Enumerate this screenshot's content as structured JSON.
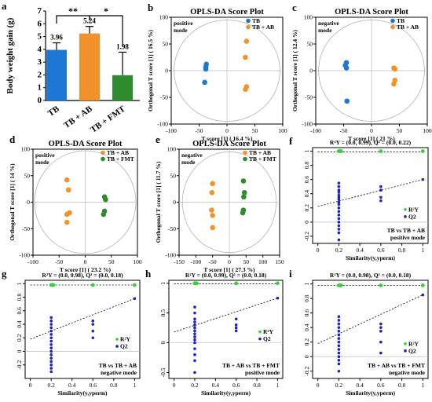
{
  "colors": {
    "blue": "#1f77d4",
    "orange": "#f2922b",
    "green": "#2e8b2e",
    "perm_blue": "#1c22c4",
    "perm_green": "#35d235",
    "ellipse": "#bbbbbb"
  },
  "panels": {
    "a": {
      "letter": "a",
      "ylabel": "Body weight gain (g)",
      "sig1": "**",
      "sig2": "*",
      "value_labels": [
        "3.96",
        "5.24",
        "1.98"
      ]
    },
    "b": {
      "letter": "b",
      "title": "OPLS-DA Score Plot",
      "mode": "positive\nmode",
      "xlabel": "T score [1] ( 16.4 %)",
      "ylabel": "Orthogonal T score [1] ( 16.5 %)",
      "legend": [
        "TB",
        "TB + AB"
      ]
    },
    "c": {
      "letter": "c",
      "title": "OPLS-DA Score Plot",
      "mode": "negative\nmode",
      "xlabel": "T score [1] ( 21 %)",
      "ylabel": "Orthogonal T score [1] ( 12.4 %)",
      "legend": [
        "TB",
        "TB + AB"
      ]
    },
    "d": {
      "letter": "d",
      "title": "OPLS-DA Score Plot",
      "mode": "positive\nmode",
      "xlabel": "T score [1] ( 23.2 %)",
      "ylabel": "Orthogonal T score [1] ( 14 %)",
      "legend": [
        "TB + AB",
        "TB + FMT"
      ]
    },
    "e": {
      "letter": "e",
      "title": "OPLS-DA Score Plot",
      "mode": "negative\nmode",
      "xlabel": "T score [1] ( 27.3 %)",
      "ylabel": "Orthogonal T score [1] ( 11.7 %)",
      "legend": [
        "TB + AB",
        "TB + FMT"
      ]
    },
    "f": {
      "letter": "f",
      "header": "R²Y = (0.0, 0.99), Q² = (0.0, 0.22)",
      "xlabel": "Similarity(y,yperm)",
      "legend": [
        "R²Y",
        "Q2"
      ],
      "note": "TB vs TB + AB\npositive mode"
    },
    "g": {
      "letter": "g",
      "header": "R²Y = (0.0, 0.98), Q² = (0.0, 0.18)",
      "xlabel": "Similarity(y,yperm)",
      "legend": [
        "R²Y",
        "Q2"
      ],
      "note": "TB vs TB + AB\nnegative mode"
    },
    "h": {
      "letter": "h",
      "header": "R²Y = (0.0, 0.99), Q² = (0.0, 0.18)",
      "xlabel": "Similarity(y,yperm)",
      "legend": [
        "R²Y",
        "Q2"
      ],
      "note": "TB + AB vs TB + FMT\npositive mode"
    },
    "i": {
      "letter": "i",
      "header": "R²Y = (0.0, 0.98), Q² = (0.0, 0.18)",
      "xlabel": "Similarity(y,yperm)",
      "legend": [
        "R²Y",
        "Q2"
      ],
      "note": "TB + AB vs TB + FMT\nnegative mode"
    }
  },
  "chart_data": [
    {
      "panel": "a",
      "type": "bar",
      "categories": [
        "TB",
        "TB + AB",
        "TB + FMT"
      ],
      "values": [
        3.96,
        5.24,
        1.98
      ],
      "errors": [
        0.55,
        0.55,
        1.8
      ],
      "colors": [
        "#1f77d4",
        "#f2922b",
        "#2e8b2e"
      ],
      "ylabel": "Body weight gain (g)",
      "ylim": [
        0,
        7
      ],
      "yticks": [
        0,
        1,
        2,
        3,
        4,
        5,
        6,
        7
      ]
    },
    {
      "panel": "b",
      "type": "scatter",
      "title": "OPLS-DA Score Plot",
      "xlabel": "T score [1] ( 16.4 %)",
      "ylabel": "Orthogonal T score [1] ( 16.5 %)",
      "xlim": [
        -100,
        100
      ],
      "ylim": [
        -100,
        100
      ],
      "xticks": [
        -100,
        -50,
        0,
        50,
        100
      ],
      "yticks": [
        -100,
        -50,
        0,
        50,
        100
      ],
      "ellipse": [
        95,
        95
      ],
      "series": [
        {
          "name": "TB",
          "color": "#1f77d4",
          "points": [
            [
              -37,
              12
            ],
            [
              -38,
              7
            ],
            [
              -38,
              3
            ],
            [
              -40,
              -22
            ]
          ]
        },
        {
          "name": "TB + AB",
          "color": "#f2922b",
          "points": [
            [
              35,
              55
            ],
            [
              33,
              25
            ],
            [
              35,
              -30
            ],
            [
              33,
              -35
            ]
          ]
        }
      ]
    },
    {
      "panel": "c",
      "type": "scatter",
      "title": "OPLS-DA Score Plot",
      "xlabel": "T score [1] ( 21 %)",
      "ylabel": "Orthogonal T score [1] ( 12.4 %)",
      "xlim": [
        -100,
        100
      ],
      "ylim": [
        -100,
        100
      ],
      "xticks": [
        -100,
        -50,
        0,
        50,
        100
      ],
      "yticks": [
        -100,
        -50,
        0,
        50,
        100
      ],
      "ellipse": [
        95,
        95
      ],
      "series": [
        {
          "name": "TB",
          "color": "#1f77d4",
          "points": [
            [
              -45,
              15
            ],
            [
              -47,
              10
            ],
            [
              -45,
              5
            ],
            [
              -44,
              -57
            ]
          ]
        },
        {
          "name": "TB + AB",
          "color": "#f2922b",
          "points": [
            [
              40,
              5
            ],
            [
              42,
              3
            ],
            [
              42,
              -18
            ],
            [
              40,
              -25
            ]
          ]
        }
      ]
    },
    {
      "panel": "d",
      "type": "scatter",
      "title": "OPLS-DA Score Plot",
      "xlabel": "T score [1] ( 23.2 %)",
      "ylabel": "Orthogonal T score [1] ( 14 %)",
      "xlim": [
        -100,
        100
      ],
      "ylim": [
        -100,
        100
      ],
      "xticks": [
        -100,
        -50,
        0,
        50,
        100
      ],
      "yticks": [
        -100,
        -50,
        0,
        50,
        100
      ],
      "ellipse": [
        97,
        97
      ],
      "series": [
        {
          "name": "TB + AB",
          "color": "#f2922b",
          "points": [
            [
              -35,
              42
            ],
            [
              -32,
              23
            ],
            [
              -35,
              -23
            ],
            [
              -30,
              -20
            ],
            [
              -35,
              -38
            ]
          ]
        },
        {
          "name": "TB + FMT",
          "color": "#2e8b2e",
          "points": [
            [
              37,
              10
            ],
            [
              39,
              5
            ],
            [
              37,
              -17
            ],
            [
              35,
              -23
            ]
          ]
        }
      ]
    },
    {
      "panel": "e",
      "type": "scatter",
      "title": "OPLS-DA Score Plot",
      "xlabel": "T score [1] ( 27.3 %)",
      "ylabel": "Orthogonal T score [1] ( 11.7 %)",
      "xlim": [
        -150,
        150
      ],
      "ylim": [
        -100,
        100
      ],
      "xticks": [
        -150,
        -100,
        -50,
        0,
        50,
        100,
        150
      ],
      "yticks": [
        -100,
        -50,
        0,
        50,
        100
      ],
      "ellipse": [
        140,
        95
      ],
      "series": [
        {
          "name": "TB + AB",
          "color": "#f2922b",
          "points": [
            [
              -50,
              35
            ],
            [
              -52,
              18
            ],
            [
              -53,
              -15
            ],
            [
              -50,
              -25
            ],
            [
              -50,
              -48
            ]
          ]
        },
        {
          "name": "TB + FMT",
          "color": "#2e8b2e",
          "points": [
            [
              42,
              40
            ],
            [
              45,
              18
            ],
            [
              43,
              10
            ],
            [
              42,
              -15
            ],
            [
              40,
              -20
            ]
          ]
        }
      ]
    },
    {
      "panel": "f",
      "type": "scatter",
      "xlabel": "Similarity(y,yperm)",
      "xlim": [
        -0.05,
        1.05
      ],
      "ylim": [
        -0.3,
        1.05
      ],
      "xticks": [
        0,
        0.2,
        0.4,
        0.6,
        0.8,
        1
      ],
      "yticks": [
        -0.2,
        0,
        0.2,
        0.4,
        0.6,
        0.8,
        1
      ],
      "r2y": {
        "x": [
          0.2,
          0.6,
          1.0
        ],
        "y": [
          1.0,
          1.0,
          1.0
        ],
        "line": [
          [
            0,
            0.99
          ],
          [
            1,
            0.99
          ]
        ]
      },
      "q2": {
        "points": [
          [
            0.2,
            0.55
          ],
          [
            0.2,
            0.5
          ],
          [
            0.2,
            0.45
          ],
          [
            0.2,
            0.42
          ],
          [
            0.2,
            0.38
          ],
          [
            0.2,
            0.35
          ],
          [
            0.2,
            0.32
          ],
          [
            0.2,
            0.28
          ],
          [
            0.2,
            0.25
          ],
          [
            0.2,
            0.2
          ],
          [
            0.2,
            0.15
          ],
          [
            0.2,
            0.1
          ],
          [
            0.2,
            0.05
          ],
          [
            0.2,
            0
          ],
          [
            0.2,
            -0.05
          ],
          [
            0.2,
            -0.1
          ],
          [
            0.2,
            -0.15
          ],
          [
            0.2,
            -0.25
          ],
          [
            0.6,
            0.5
          ],
          [
            0.6,
            0.45
          ],
          [
            0.6,
            0.35
          ],
          [
            0.6,
            0.3
          ],
          [
            1.0,
            0.6
          ]
        ],
        "line": [
          [
            0,
            0.22
          ],
          [
            1,
            0.6
          ]
        ]
      },
      "note": "TB vs TB + AB positive mode"
    },
    {
      "panel": "g",
      "type": "scatter",
      "xlabel": "Similarity(y,yperm)",
      "xlim": [
        -0.05,
        1.05
      ],
      "ylim": [
        -0.4,
        1.05
      ],
      "xticks": [
        0,
        0.2,
        0.4,
        0.6,
        0.8,
        1
      ],
      "yticks": [
        -0.2,
        0,
        0.2,
        0.4,
        0.6,
        0.8,
        1
      ],
      "r2y": {
        "x": [
          0.2,
          0.6,
          1.0
        ],
        "y": [
          0.98,
          0.98,
          0.98
        ],
        "line": [
          [
            0,
            0.98
          ],
          [
            1,
            0.98
          ]
        ]
      },
      "q2": {
        "points": [
          [
            0.2,
            0.5
          ],
          [
            0.2,
            0.45
          ],
          [
            0.2,
            0.4
          ],
          [
            0.2,
            0.35
          ],
          [
            0.2,
            0.3
          ],
          [
            0.2,
            0.25
          ],
          [
            0.2,
            0.2
          ],
          [
            0.2,
            0.15
          ],
          [
            0.2,
            0.1
          ],
          [
            0.2,
            0.05
          ],
          [
            0.2,
            0
          ],
          [
            0.2,
            -0.05
          ],
          [
            0.2,
            -0.1
          ],
          [
            0.2,
            -0.15
          ],
          [
            0.2,
            -0.2
          ],
          [
            0.2,
            -0.25
          ],
          [
            0.2,
            -0.3
          ],
          [
            0.6,
            0.45
          ],
          [
            0.6,
            0.4
          ],
          [
            0.6,
            0.3
          ],
          [
            0.6,
            0.2
          ],
          [
            1.0,
            0.78
          ]
        ],
        "line": [
          [
            0,
            0.18
          ],
          [
            1,
            0.78
          ]
        ]
      },
      "note": "TB vs TB + AB negative mode"
    },
    {
      "panel": "h",
      "type": "scatter",
      "xlabel": "Similarity(y,yperm)",
      "xlim": [
        -0.05,
        1.05
      ],
      "ylim": [
        -0.6,
        1.05
      ],
      "xticks": [
        0,
        0.2,
        0.4,
        0.6,
        0.8,
        1
      ],
      "yticks": [
        -0.5,
        0,
        0.5,
        1
      ],
      "r2y": {
        "x": [
          0.2,
          0.6,
          1.0
        ],
        "y": [
          1.0,
          1.0,
          1.0
        ],
        "line": [
          [
            0,
            0.99
          ],
          [
            1,
            0.99
          ]
        ]
      },
      "q2": {
        "points": [
          [
            0.2,
            0.6
          ],
          [
            0.2,
            0.5
          ],
          [
            0.2,
            0.4
          ],
          [
            0.2,
            0.35
          ],
          [
            0.2,
            0.3
          ],
          [
            0.2,
            0.25
          ],
          [
            0.2,
            0.2
          ],
          [
            0.2,
            0.15
          ],
          [
            0.2,
            0.1
          ],
          [
            0.2,
            0.05
          ],
          [
            0.2,
            0
          ],
          [
            0.2,
            -0.1
          ],
          [
            0.2,
            -0.2
          ],
          [
            0.2,
            -0.3
          ],
          [
            0.2,
            -0.5
          ],
          [
            0.6,
            0.4
          ],
          [
            0.6,
            0.3
          ],
          [
            0.6,
            0.25
          ],
          [
            0.6,
            0.2
          ],
          [
            1.0,
            0.75
          ]
        ],
        "line": [
          [
            0,
            0.18
          ],
          [
            1,
            0.75
          ]
        ]
      },
      "note": "TB + AB vs TB + FMT positive mode"
    },
    {
      "panel": "i",
      "type": "scatter",
      "xlabel": "Similarity(y,yperm)",
      "xlim": [
        -0.05,
        1.05
      ],
      "ylim": [
        -0.3,
        1.05
      ],
      "xticks": [
        0,
        0.2,
        0.4,
        0.6,
        0.8,
        1
      ],
      "yticks": [
        -0.2,
        0,
        0.2,
        0.4,
        0.6,
        0.8,
        1
      ],
      "r2y": {
        "x": [
          0.2,
          0.6,
          1.0
        ],
        "y": [
          0.98,
          0.98,
          0.98
        ],
        "line": [
          [
            0,
            0.98
          ],
          [
            1,
            0.98
          ]
        ]
      },
      "q2": {
        "points": [
          [
            0.2,
            0.55
          ],
          [
            0.2,
            0.5
          ],
          [
            0.2,
            0.45
          ],
          [
            0.2,
            0.4
          ],
          [
            0.2,
            0.35
          ],
          [
            0.2,
            0.3
          ],
          [
            0.2,
            0.25
          ],
          [
            0.2,
            0.2
          ],
          [
            0.2,
            0.15
          ],
          [
            0.2,
            0.1
          ],
          [
            0.2,
            0.05
          ],
          [
            0.2,
            0
          ],
          [
            0.2,
            -0.05
          ],
          [
            0.2,
            -0.1
          ],
          [
            0.2,
            -0.2
          ],
          [
            0.6,
            0.45
          ],
          [
            0.6,
            0.4
          ],
          [
            0.6,
            0.35
          ],
          [
            0.6,
            0.2
          ],
          [
            0.6,
            0.05
          ],
          [
            1.0,
            0.85
          ]
        ],
        "line": [
          [
            0,
            0.18
          ],
          [
            1,
            0.85
          ]
        ]
      },
      "note": "TB + AB vs TB + FMT negative mode"
    }
  ]
}
